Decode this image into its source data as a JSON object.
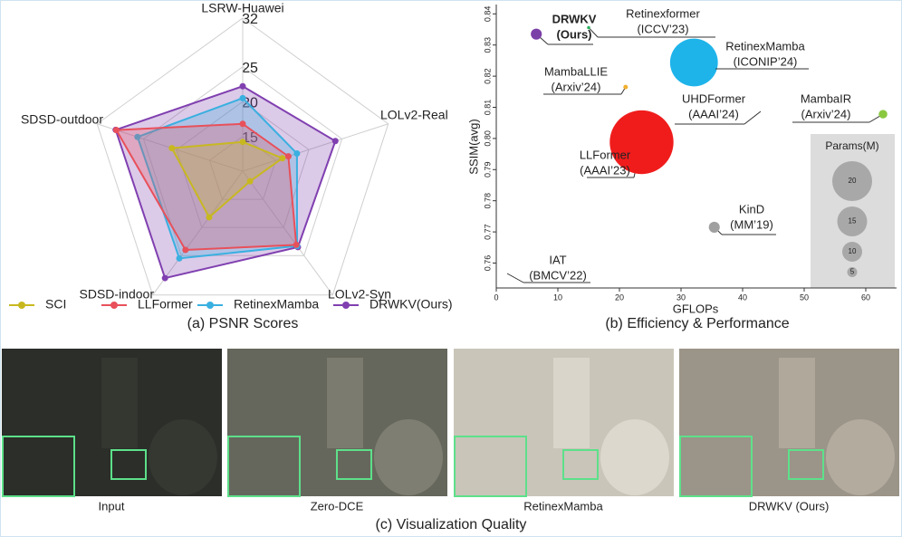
{
  "chart_data": [
    {
      "type": "radar",
      "caption": "(a) PSNR Scores",
      "axes": [
        "LSRW-Huawei",
        "LOLv2-Real",
        "LOLv2-Syn",
        "SDSD-indoor",
        "SDSD-outdoor"
      ],
      "rlim": [
        10,
        32
      ],
      "rticks": [
        15,
        20,
        25,
        32
      ],
      "series": [
        {
          "name": "SCI",
          "color": "#c8b820",
          "values": [
            14.2,
            16.0,
            11.8,
            18.2,
            20.7
          ]
        },
        {
          "name": "LLFormer",
          "color": "#e8505a",
          "values": [
            16.8,
            16.9,
            23.1,
            24.0,
            29.1
          ]
        },
        {
          "name": "RetinexMamba",
          "color": "#3ab0e0",
          "values": [
            20.5,
            18.2,
            23.3,
            25.5,
            25.9
          ]
        },
        {
          "name": "DRWKV(Ours)",
          "color": "#8040b0",
          "values": [
            22.2,
            24.0,
            23.5,
            29.0,
            29.2
          ]
        }
      ]
    },
    {
      "type": "scatter",
      "caption": "(b) Efficiency & Performance",
      "xlabel": "GFLOPs",
      "ylabel": "SSIM(avg)",
      "xlim": [
        0,
        65
      ],
      "ylim": [
        0.752,
        0.843
      ],
      "xticks": [
        0,
        10,
        20,
        30,
        40,
        50,
        60
      ],
      "yticks": [
        0.76,
        0.77,
        0.78,
        0.79,
        {
          "value": 0.8,
          "label": "0.80"
        },
        0.81,
        0.82,
        0.83,
        0.84
      ],
      "points": [
        {
          "name": "DRWKV",
          "venue": "(Ours)",
          "x": 6.5,
          "y": 0.8335,
          "size": 5.5,
          "color": "#7b3fa8"
        },
        {
          "name": "Retinexformer",
          "venue": "(ICCV’23)",
          "x": 15,
          "y": 0.8356,
          "size": 1.6,
          "color": "#2ab060"
        },
        {
          "name": "RetinexMamba",
          "venue": "(ICONIP’24)",
          "x": 32.1,
          "y": 0.8244,
          "size": 24,
          "color": "#1eb4ea"
        },
        {
          "name": "MambaLLIE",
          "venue": "(Arxiv’24)",
          "x": 21,
          "y": 0.8165,
          "size": 2.3,
          "color": "#f0b030"
        },
        {
          "name": "MambaIR",
          "venue": "(Arxiv’24)",
          "x": 62.8,
          "y": 0.8078,
          "size": 4.3,
          "color": "#8ac840"
        },
        {
          "name": "LLFormer",
          "venue": "(AAAI’23)",
          "x": 23.6,
          "y": 0.7988,
          "size": 32,
          "color": "#f01c1c"
        },
        {
          "name": "KinD",
          "venue": "(MM’19)",
          "x": 35.4,
          "y": 0.7715,
          "size": 5.5,
          "color": "#a0a0a0"
        }
      ],
      "annotations": [
        {
          "name": "UHDFormer",
          "venue": "(AAAI’24)"
        },
        {
          "name": "IAT",
          "venue": "(BMCV’22)"
        }
      ],
      "size_legend": {
        "title": "Params(M)",
        "values": [
          20,
          15,
          10,
          5
        ]
      }
    }
  ],
  "figure": {
    "panels": [
      {
        "label": "Input"
      },
      {
        "label": "Zero-DCE"
      },
      {
        "label": "RetinexMamba"
      },
      {
        "label": "DRWKV (Ours)"
      }
    ],
    "caption": "(c) Visualization Quality"
  }
}
